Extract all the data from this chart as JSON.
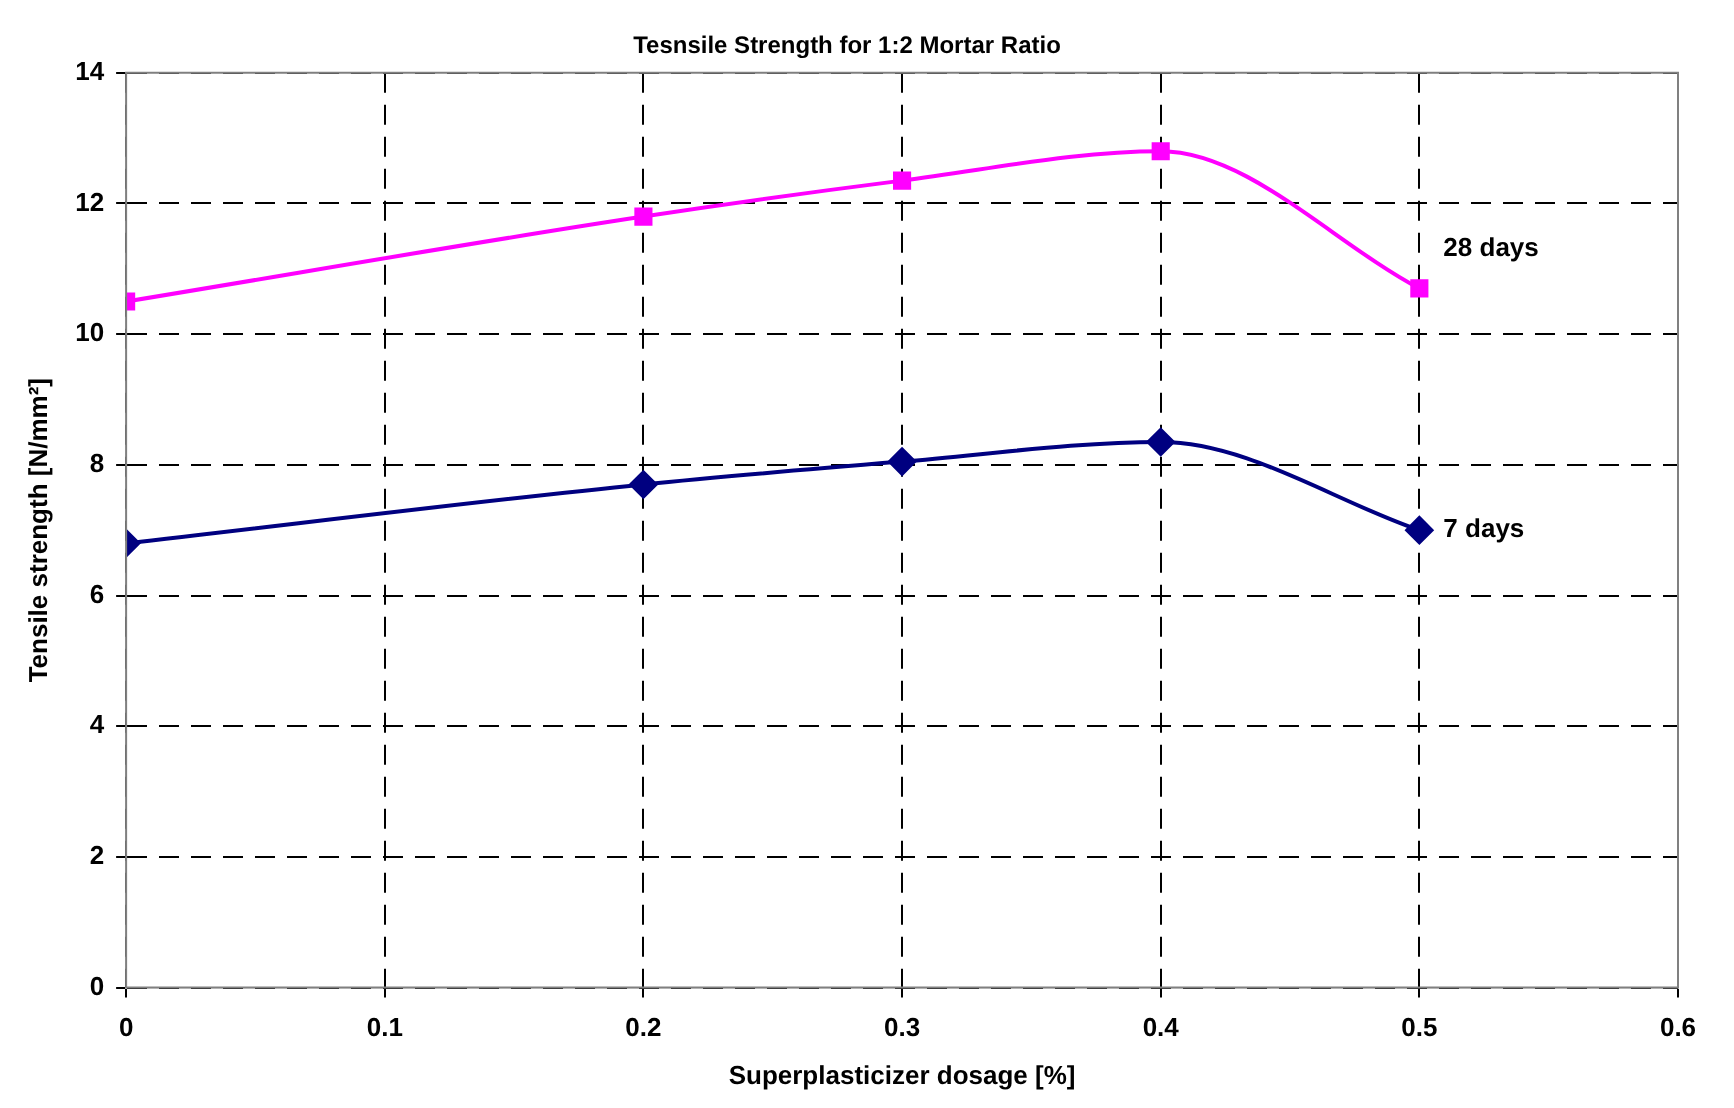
{
  "chart_data": {
    "type": "line",
    "title": "Tesnsile Strength for 1:2 Mortar Ratio",
    "xlabel": "Superplasticizer dosage [%]",
    "ylabel": "Tensile strength [N/mm²]",
    "x": [
      0,
      0.2,
      0.3,
      0.4,
      0.5
    ],
    "series": [
      {
        "name": "28 days",
        "color": "#ff00ff",
        "marker": "square",
        "values": [
          10.5,
          11.8,
          12.35,
          12.8,
          10.7
        ]
      },
      {
        "name": "7 days",
        "color": "#000080",
        "marker": "diamond",
        "values": [
          6.8,
          7.7,
          8.05,
          8.35,
          7.0
        ]
      }
    ],
    "xlim": [
      0,
      0.6
    ],
    "xticks": [
      0,
      0.1,
      0.2,
      0.3,
      0.4,
      0.5,
      0.6
    ],
    "ylim": [
      0,
      14
    ],
    "yticks": [
      0,
      2,
      4,
      6,
      8,
      10,
      12,
      14
    ],
    "grid": true,
    "legend": false,
    "line_style": "solid"
  }
}
